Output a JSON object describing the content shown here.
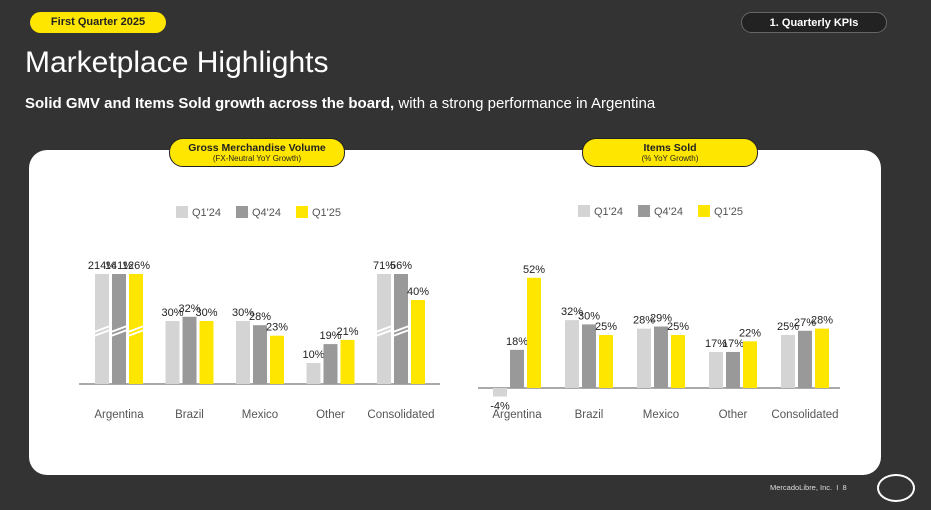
{
  "header": {
    "quarter_label": "First Quarter 2025",
    "section_label": "1. Quarterly KPIs"
  },
  "title": "Marketplace Highlights",
  "subtitle": {
    "bold": "Solid GMV and Items Sold growth across the board,",
    "rest": " with a strong performance in Argentina"
  },
  "footer": {
    "company": "MercadoLibre, Inc.",
    "page": "8"
  },
  "colors": {
    "q1_24": "#D4D4D4",
    "q4_24": "#999999",
    "q1_25": "#FFE600",
    "accent": "#FFE600",
    "background": "#333333"
  },
  "chart_data": [
    {
      "type": "bar",
      "title": "Gross Merchandise Volume",
      "subtitle": "(FX-Neutral YoY Growth)",
      "categories": [
        "Argentina",
        "Brazil",
        "Mexico",
        "Other",
        "Consolidated"
      ],
      "series": [
        {
          "name": "Q1'24",
          "values": [
            214,
            30,
            30,
            10,
            71
          ],
          "labels": [
            "214%",
            "30%",
            "30%",
            "10%",
            "71%"
          ]
        },
        {
          "name": "Q4'24",
          "values": [
            141,
            32,
            28,
            19,
            56
          ],
          "labels": [
            "141%",
            "32%",
            "28%",
            "19%",
            "56%"
          ]
        },
        {
          "name": "Q1'25",
          "values": [
            126,
            30,
            23,
            21,
            40
          ],
          "labels": [
            "126%",
            "30%",
            "23%",
            "21%",
            "40%"
          ]
        }
      ],
      "axis_break": "Argentina bars truncated"
    },
    {
      "type": "bar",
      "title": "Items Sold",
      "subtitle": "(% YoY Growth)",
      "categories": [
        "Argentina",
        "Brazil",
        "Mexico",
        "Other",
        "Consolidated"
      ],
      "series": [
        {
          "name": "Q1'24",
          "values": [
            -4,
            32,
            28,
            17,
            25
          ],
          "labels": [
            "-4%",
            "32%",
            "28%",
            "17%",
            "25%"
          ]
        },
        {
          "name": "Q4'24",
          "values": [
            18,
            30,
            29,
            17,
            27
          ],
          "labels": [
            "18%",
            "30%",
            "29%",
            "17%",
            "27%"
          ]
        },
        {
          "name": "Q1'25",
          "values": [
            52,
            25,
            25,
            22,
            28
          ],
          "labels": [
            "52%",
            "25%",
            "25%",
            "22%",
            "28%"
          ]
        }
      ]
    }
  ]
}
